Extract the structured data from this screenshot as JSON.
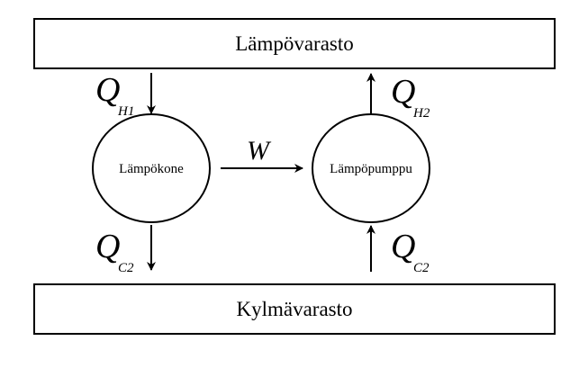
{
  "reservoirs": {
    "hot": {
      "label": "Lämpövarasto"
    },
    "cold": {
      "label": "Kylmävarasto"
    }
  },
  "nodes": {
    "engine": {
      "label": "Lämpökone"
    },
    "pump": {
      "label": "Lämpöpumppu"
    }
  },
  "flows": {
    "engine_in": {
      "symbol": "Q",
      "subscript": "H1"
    },
    "engine_out": {
      "symbol": "Q",
      "subscript": "C2"
    },
    "pump_out": {
      "symbol": "Q",
      "subscript": "H2"
    },
    "pump_in": {
      "symbol": "Q",
      "subscript": "C2"
    },
    "work": {
      "symbol": "W"
    }
  },
  "colors": {
    "stroke": "#000000",
    "background": "#ffffff"
  }
}
